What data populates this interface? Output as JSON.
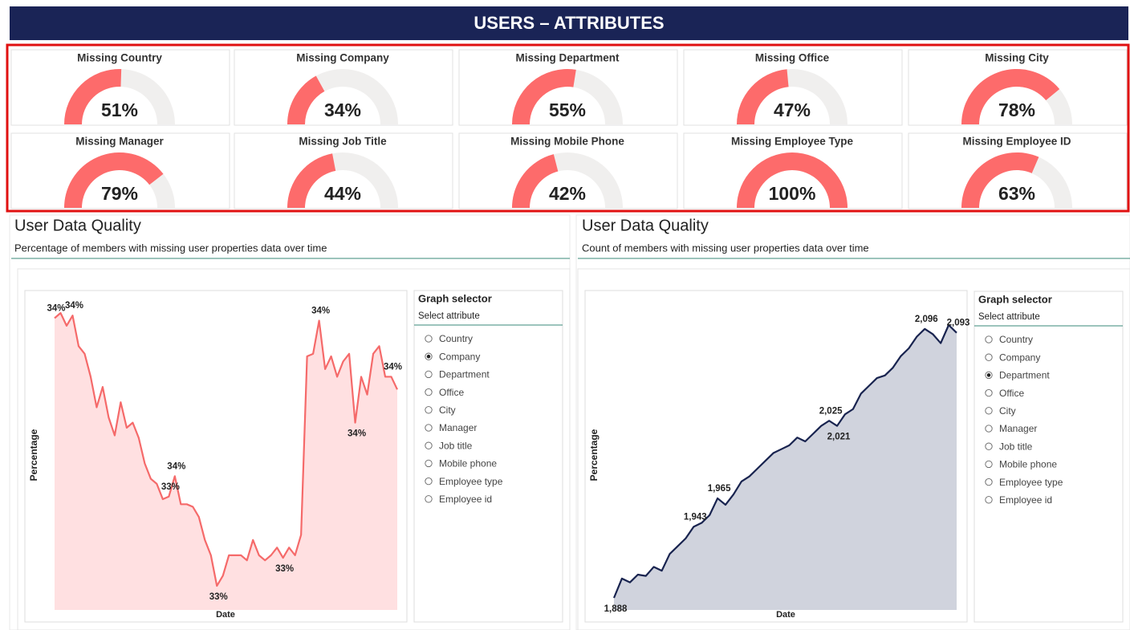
{
  "chart_data": [
    {
      "type": "gauge",
      "title": "USERS – ATTRIBUTES",
      "categories": [
        "Missing Country",
        "Missing Company",
        "Missing Department",
        "Missing Office",
        "Missing City",
        "Missing Manager",
        "Missing Job Title",
        "Missing Mobile Phone",
        "Missing Employee Type",
        "Missing Employee ID"
      ],
      "values": [
        51,
        34,
        55,
        47,
        78,
        79,
        44,
        42,
        100,
        63
      ],
      "value_labels": [
        "51%",
        "34%",
        "55%",
        "47%",
        "78%",
        "79%",
        "44%",
        "42%",
        "100%",
        "63%"
      ],
      "ylim": [
        0,
        100
      ],
      "color": "#fd6b6b",
      "track_color": "#f0efee"
    },
    {
      "type": "area",
      "title": "User Data Quality",
      "subtitle": "Percentage of members with missing user properties data over time",
      "x_label": "Date",
      "y_label": "Percentage",
      "color": "#f56a6a",
      "fill": "#ffe0e1",
      "values": [
        34.18,
        34.2,
        34.15,
        34.19,
        34.07,
        34.04,
        33.95,
        33.83,
        33.91,
        33.79,
        33.72,
        33.85,
        33.75,
        33.77,
        33.71,
        33.61,
        33.55,
        33.53,
        33.47,
        33.48,
        33.56,
        33.45,
        33.45,
        33.44,
        33.4,
        33.31,
        33.25,
        33.13,
        33.17,
        33.25,
        33.25,
        33.25,
        33.23,
        33.31,
        33.25,
        33.23,
        33.25,
        33.28,
        33.24,
        33.28,
        33.25,
        33.33,
        34.03,
        34.04,
        34.17,
        33.98,
        34.03,
        33.95,
        34.01,
        34.04,
        33.77,
        33.95,
        33.88,
        34.04,
        34.07,
        33.95,
        33.95,
        33.9
      ],
      "value_labels": [
        "34%",
        null,
        null,
        "34%",
        null,
        null,
        null,
        null,
        null,
        null,
        null,
        null,
        null,
        null,
        null,
        null,
        null,
        null,
        null,
        "33%",
        "34%",
        null,
        null,
        null,
        null,
        null,
        null,
        "33%",
        null,
        null,
        null,
        null,
        null,
        null,
        null,
        null,
        null,
        null,
        "33%",
        null,
        null,
        null,
        null,
        null,
        "34%",
        null,
        null,
        null,
        null,
        null,
        "34%",
        null,
        null,
        null,
        null,
        null,
        "34%",
        null
      ]
    },
    {
      "type": "area",
      "title": "User Data Quality",
      "subtitle": "Count of members with missing user properties data over time",
      "x_label": "Date",
      "y_label": "Percentage",
      "color": "#18234f",
      "fill": "#d0d3dd",
      "values": [
        1888,
        1903,
        1900,
        1906,
        1905,
        1912,
        1909,
        1922,
        1928,
        1934,
        1943,
        1946,
        1952,
        1965,
        1960,
        1968,
        1978,
        1982,
        1988,
        1994,
        2000,
        2003,
        2006,
        2012,
        2009,
        2015,
        2021,
        2025,
        2021,
        2030,
        2034,
        2046,
        2052,
        2058,
        2060,
        2066,
        2075,
        2081,
        2090,
        2096,
        2092,
        2085,
        2099,
        2093
      ],
      "value_labels": [
        "1,888",
        null,
        null,
        null,
        null,
        null,
        null,
        null,
        null,
        null,
        "1,943",
        null,
        null,
        "1,965",
        null,
        null,
        null,
        null,
        null,
        null,
        null,
        null,
        null,
        null,
        null,
        null,
        null,
        "2,025",
        "2,021",
        null,
        null,
        null,
        null,
        null,
        null,
        null,
        null,
        null,
        null,
        "2,096",
        null,
        null,
        null,
        "2,093"
      ]
    }
  ],
  "selectors": [
    {
      "title": "Graph selector",
      "subtitle": "Select attribute",
      "options": [
        "Country",
        "Company",
        "Department",
        "Office",
        "City",
        "Manager",
        "Job title",
        "Mobile phone",
        "Employee type",
        "Employee id"
      ],
      "selected": 1
    },
    {
      "title": "Graph selector",
      "subtitle": "Select attribute",
      "options": [
        "Country",
        "Company",
        "Department",
        "Office",
        "City",
        "Manager",
        "Job title",
        "Mobile phone",
        "Employee type",
        "Employee id"
      ],
      "selected": 2
    }
  ]
}
